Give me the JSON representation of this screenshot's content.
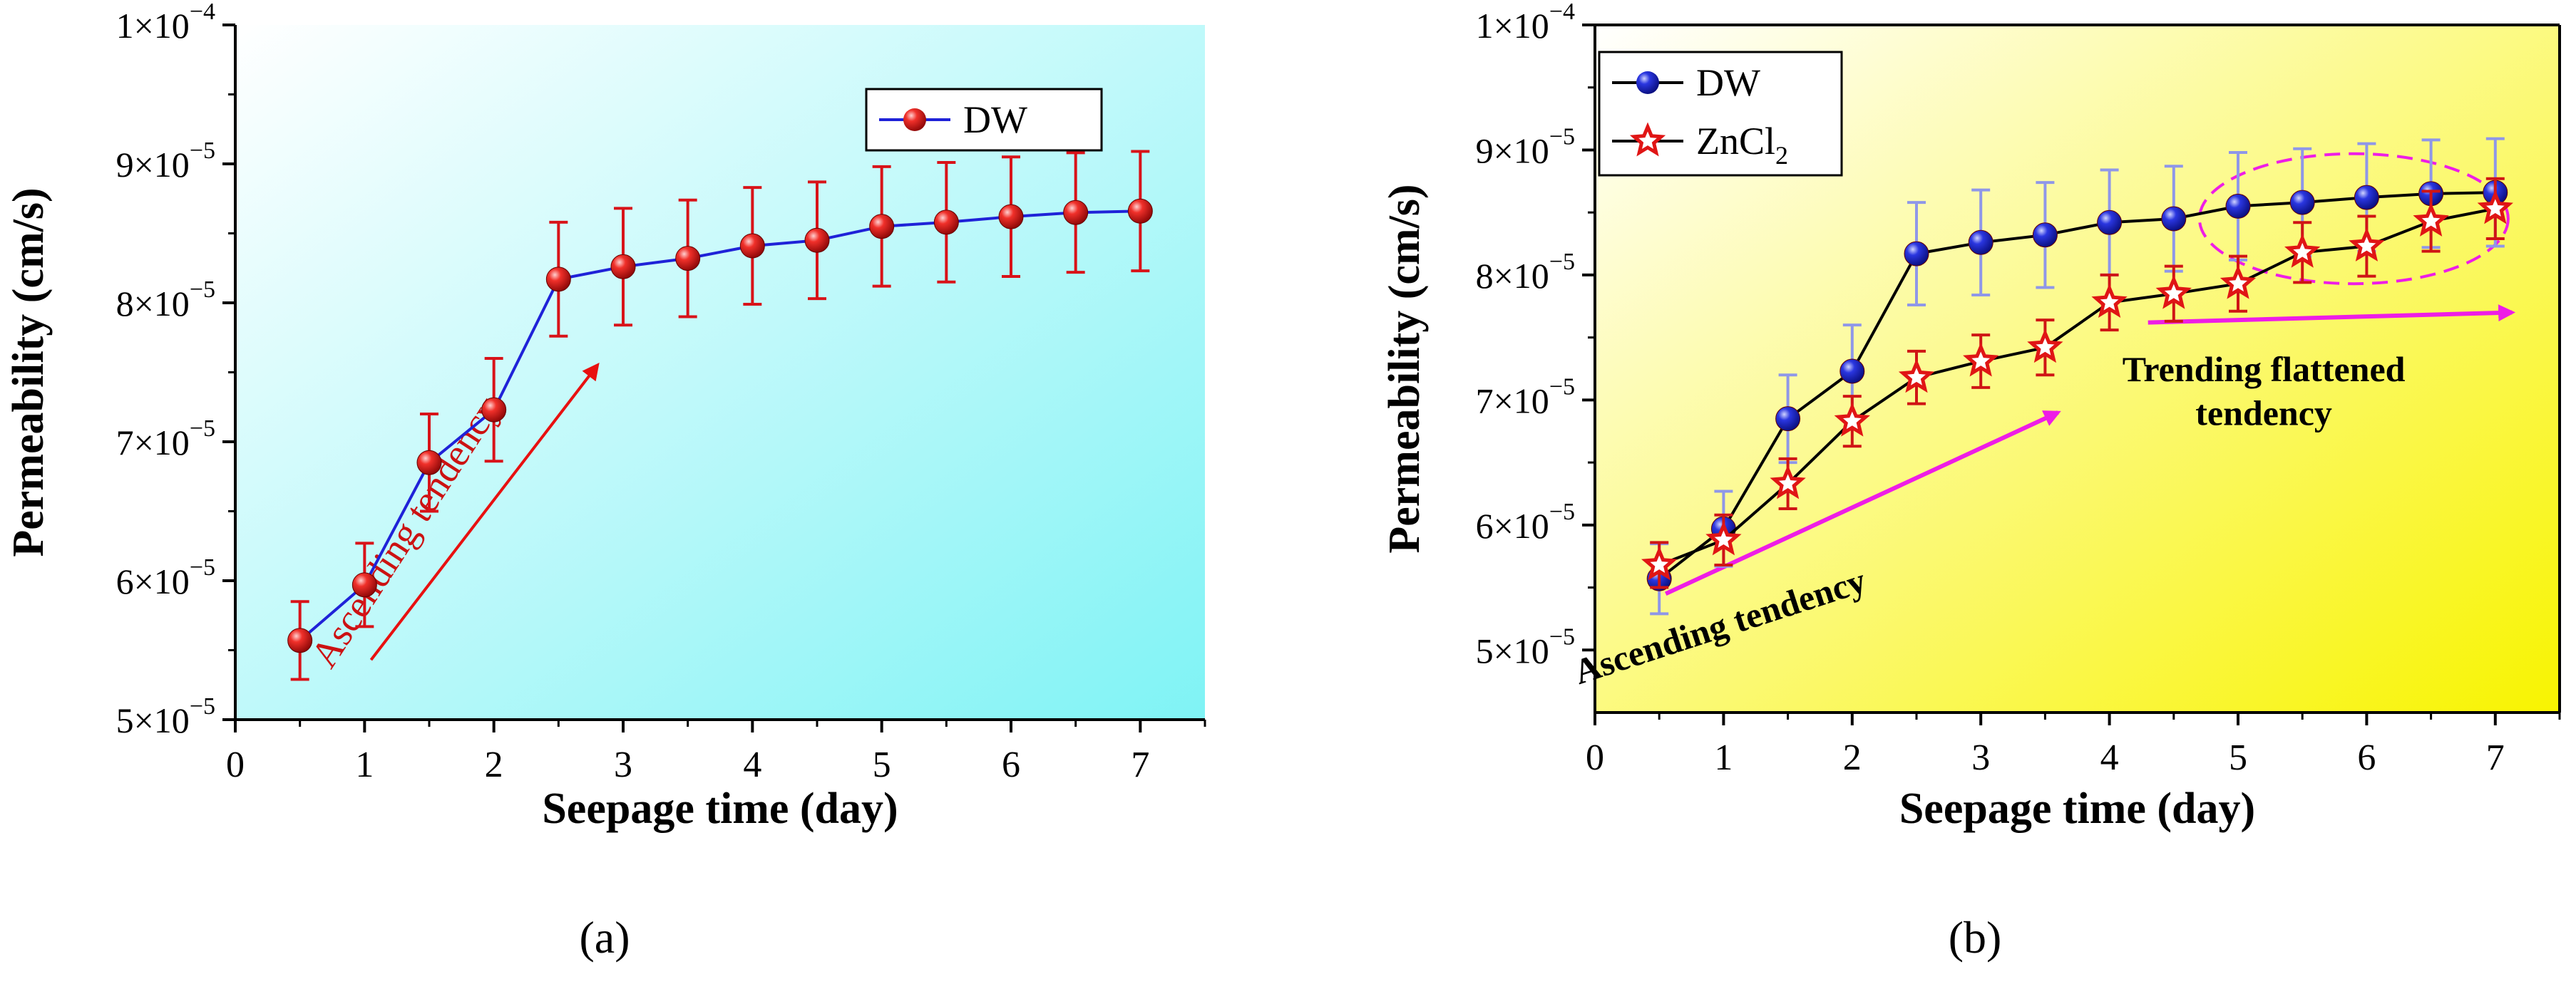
{
  "chart_data": [
    {
      "panel_label": "(a)",
      "type": "line",
      "xlabel": "Seepage time (day)",
      "ylabel": "Permeability (cm/s)",
      "xlim": [
        0,
        7.5
      ],
      "ylim": [
        5e-05,
        0.0001
      ],
      "x_ticks": [
        "0",
        "1",
        "2",
        "3",
        "4",
        "5",
        "6",
        "7"
      ],
      "y_ticks": [
        {
          "mantissa": "5",
          "exp": "−5"
        },
        {
          "mantissa": "6",
          "exp": "−5"
        },
        {
          "mantissa": "7",
          "exp": "−5"
        },
        {
          "mantissa": "8",
          "exp": "−5"
        },
        {
          "mantissa": "9",
          "exp": "−5"
        },
        {
          "mantissa": "1",
          "exp": "−4"
        }
      ],
      "background": {
        "from": "#ffffff",
        "to": "#7ff3f5"
      },
      "legend_position": "top-right",
      "series": [
        {
          "name": "DW",
          "line_color": "#1f22d8",
          "marker": "circle",
          "marker_color": "#e8151a",
          "errorbar_color": "#d81319",
          "x": [
            0.5,
            1,
            1.5,
            2,
            2.5,
            3,
            3.5,
            4,
            4.5,
            5,
            5.5,
            6,
            6.5,
            7
          ],
          "y": [
            5.57e-05,
            5.97e-05,
            6.85e-05,
            7.23e-05,
            8.17e-05,
            8.26e-05,
            8.32e-05,
            8.41e-05,
            8.45e-05,
            8.55e-05,
            8.58e-05,
            8.62e-05,
            8.65e-05,
            8.66e-05
          ],
          "err": [
            2.8e-06,
            3e-06,
            3.5e-06,
            3.7e-06,
            4.1e-06,
            4.2e-06,
            4.2e-06,
            4.2e-06,
            4.2e-06,
            4.3e-06,
            4.3e-06,
            4.3e-06,
            4.3e-06,
            4.3e-06
          ]
        }
      ],
      "annotations": [
        {
          "text": "Ascending tendency",
          "color": "#cc1212",
          "x": 1.4,
          "y": 6.3e-05,
          "angle": -57
        },
        {
          "arrow": true,
          "color": "#e81010",
          "from": [
            1.05,
            5.43e-05
          ],
          "to": [
            2.8,
            7.55e-05
          ]
        }
      ]
    },
    {
      "panel_label": "(b)",
      "type": "line",
      "xlabel": "Seepage time (day)",
      "ylabel": "Permeability (cm/s)",
      "xlim": [
        0,
        7.5
      ],
      "ylim": [
        4.5e-05,
        0.0001
      ],
      "x_ticks": [
        "0",
        "1",
        "2",
        "3",
        "4",
        "5",
        "6",
        "7"
      ],
      "y_ticks": [
        {
          "mantissa": "5",
          "exp": "−5"
        },
        {
          "mantissa": "6",
          "exp": "−5"
        },
        {
          "mantissa": "7",
          "exp": "−5"
        },
        {
          "mantissa": "8",
          "exp": "−5"
        },
        {
          "mantissa": "9",
          "exp": "−5"
        },
        {
          "mantissa": "1",
          "exp": "−4"
        }
      ],
      "background": {
        "from": "#ffffff",
        "to": "#f8f400"
      },
      "legend_position": "top-left",
      "series": [
        {
          "name": "DW",
          "line_color": "#000000",
          "marker": "circle",
          "marker_color": "#1e26d8",
          "errorbar_color": "#8f97e8",
          "x": [
            0.5,
            1,
            1.5,
            2,
            2.5,
            3,
            3.5,
            4,
            4.5,
            5,
            5.5,
            6,
            6.5,
            7
          ],
          "y": [
            5.57e-05,
            5.97e-05,
            6.85e-05,
            7.23e-05,
            8.17e-05,
            8.26e-05,
            8.32e-05,
            8.42e-05,
            8.45e-05,
            8.55e-05,
            8.58e-05,
            8.62e-05,
            8.65e-05,
            8.66e-05
          ],
          "err": [
            2.8e-06,
            3e-06,
            3.5e-06,
            3.7e-06,
            4.1e-06,
            4.2e-06,
            4.2e-06,
            4.2e-06,
            4.2e-06,
            4.3e-06,
            4.3e-06,
            4.3e-06,
            4.3e-06,
            4.3e-06
          ]
        },
        {
          "name": "ZnCl",
          "name_subscript": "2",
          "line_color": "#000000",
          "marker": "star",
          "marker_color": "#e01515",
          "errorbar_color": "#cf1515",
          "x": [
            0.5,
            1,
            1.5,
            2,
            2.5,
            3,
            3.5,
            4,
            4.5,
            5,
            5.5,
            6,
            6.5,
            7
          ],
          "y": [
            5.68e-05,
            5.88e-05,
            6.33e-05,
            6.83e-05,
            7.18e-05,
            7.31e-05,
            7.42e-05,
            7.78e-05,
            7.85e-05,
            7.93e-05,
            8.18e-05,
            8.23e-05,
            8.43e-05,
            8.53e-05
          ],
          "err": [
            1.8e-06,
            2e-06,
            2e-06,
            2e-06,
            2.1e-06,
            2.1e-06,
            2.2e-06,
            2.2e-06,
            2.2e-06,
            2.2e-06,
            2.4e-06,
            2.4e-06,
            2.4e-06,
            2.4e-06
          ]
        }
      ],
      "annotations": [
        {
          "text": "Ascending tendency",
          "color": "#000000",
          "x": 1.0,
          "y": 5.1e-05,
          "angle": -18
        },
        {
          "arrow": true,
          "color": "#ee1de6",
          "from": [
            0.55,
            5.45e-05
          ],
          "to": [
            3.6,
            6.9e-05
          ]
        },
        {
          "text": "Trending flattened",
          "color": "#000000",
          "x": 5.2,
          "y": 7.15e-05
        },
        {
          "text": "tendency",
          "color": "#000000",
          "x": 5.2,
          "y": 6.8e-05
        },
        {
          "arrow": true,
          "color": "#ee1de6",
          "from": [
            4.3,
            7.62e-05
          ],
          "to": [
            7.13,
            7.7e-05
          ]
        },
        {
          "ellipse": true,
          "color": "#ee1de6",
          "center": [
            5.9,
            8.45e-05
          ],
          "rx": 1.2,
          "ry": 5.2e-06
        }
      ]
    }
  ]
}
